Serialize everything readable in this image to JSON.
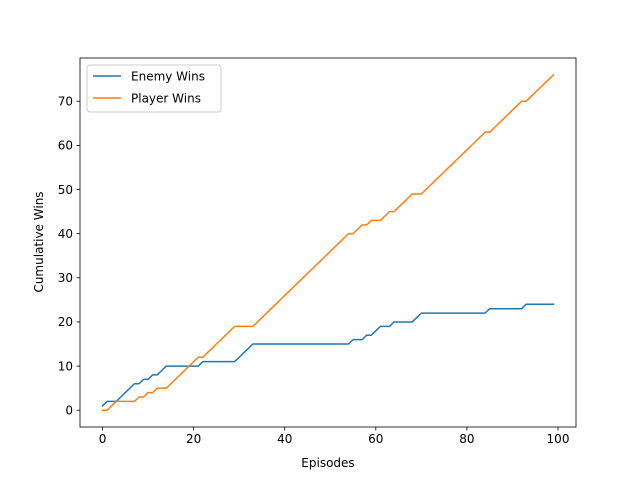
{
  "chart_data": {
    "type": "line",
    "title": "",
    "xlabel": "Episodes",
    "ylabel": "Cumulative Wins",
    "xlim": [
      -4.95,
      103.95
    ],
    "ylim": [
      -3.8,
      79.8
    ],
    "xticks": [
      0,
      20,
      40,
      60,
      80,
      100
    ],
    "yticks": [
      0,
      10,
      20,
      30,
      40,
      50,
      60,
      70
    ],
    "grid": false,
    "legend_position": "top-left",
    "series": [
      {
        "name": "Enemy Wins",
        "color": "#1f77b4",
        "x": [
          0,
          1,
          2,
          3,
          4,
          5,
          6,
          7,
          8,
          9,
          10,
          11,
          12,
          13,
          14,
          15,
          16,
          17,
          18,
          19,
          20,
          21,
          22,
          23,
          24,
          25,
          26,
          27,
          28,
          29,
          30,
          31,
          32,
          33,
          34,
          35,
          36,
          37,
          38,
          39,
          40,
          41,
          42,
          43,
          44,
          45,
          46,
          47,
          48,
          49,
          50,
          51,
          52,
          53,
          54,
          55,
          56,
          57,
          58,
          59,
          60,
          61,
          62,
          63,
          64,
          65,
          66,
          67,
          68,
          69,
          70,
          71,
          72,
          73,
          74,
          75,
          76,
          77,
          78,
          79,
          80,
          81,
          82,
          83,
          84,
          85,
          86,
          87,
          88,
          89,
          90,
          91,
          92,
          93,
          94,
          95,
          96,
          97,
          98,
          99
        ],
        "y": [
          1,
          2,
          2,
          2,
          3,
          4,
          5,
          6,
          6,
          7,
          7,
          8,
          8,
          9,
          10,
          10,
          10,
          10,
          10,
          10,
          10,
          10,
          11,
          11,
          11,
          11,
          11,
          11,
          11,
          11,
          12,
          13,
          14,
          15,
          15,
          15,
          15,
          15,
          15,
          15,
          15,
          15,
          15,
          15,
          15,
          15,
          15,
          15,
          15,
          15,
          15,
          15,
          15,
          15,
          15,
          16,
          16,
          16,
          17,
          17,
          18,
          19,
          19,
          19,
          20,
          20,
          20,
          20,
          20,
          21,
          22,
          22,
          22,
          22,
          22,
          22,
          22,
          22,
          22,
          22,
          22,
          22,
          22,
          22,
          22,
          23,
          23,
          23,
          23,
          23,
          23,
          23,
          23,
          24,
          24,
          24,
          24,
          24,
          24,
          24
        ]
      },
      {
        "name": "Player Wins",
        "color": "#ff7f0e",
        "x": [
          0,
          1,
          2,
          3,
          4,
          5,
          6,
          7,
          8,
          9,
          10,
          11,
          12,
          13,
          14,
          15,
          16,
          17,
          18,
          19,
          20,
          21,
          22,
          23,
          24,
          25,
          26,
          27,
          28,
          29,
          30,
          31,
          32,
          33,
          34,
          35,
          36,
          37,
          38,
          39,
          40,
          41,
          42,
          43,
          44,
          45,
          46,
          47,
          48,
          49,
          50,
          51,
          52,
          53,
          54,
          55,
          56,
          57,
          58,
          59,
          60,
          61,
          62,
          63,
          64,
          65,
          66,
          67,
          68,
          69,
          70,
          71,
          72,
          73,
          74,
          75,
          76,
          77,
          78,
          79,
          80,
          81,
          82,
          83,
          84,
          85,
          86,
          87,
          88,
          89,
          90,
          91,
          92,
          93,
          94,
          95,
          96,
          97,
          98,
          99
        ],
        "y": [
          0,
          0,
          1,
          2,
          2,
          2,
          2,
          2,
          3,
          3,
          4,
          4,
          5,
          5,
          5,
          6,
          7,
          8,
          9,
          10,
          11,
          12,
          12,
          13,
          14,
          15,
          16,
          17,
          18,
          19,
          19,
          19,
          19,
          19,
          20,
          21,
          22,
          23,
          24,
          25,
          26,
          27,
          28,
          29,
          30,
          31,
          32,
          33,
          34,
          35,
          36,
          37,
          38,
          39,
          40,
          40,
          41,
          42,
          42,
          43,
          43,
          43,
          44,
          45,
          45,
          46,
          47,
          48,
          49,
          49,
          49,
          50,
          51,
          52,
          53,
          54,
          55,
          56,
          57,
          58,
          59,
          60,
          61,
          62,
          63,
          63,
          64,
          65,
          66,
          67,
          68,
          69,
          70,
          70,
          71,
          72,
          73,
          74,
          75,
          76
        ]
      }
    ]
  }
}
